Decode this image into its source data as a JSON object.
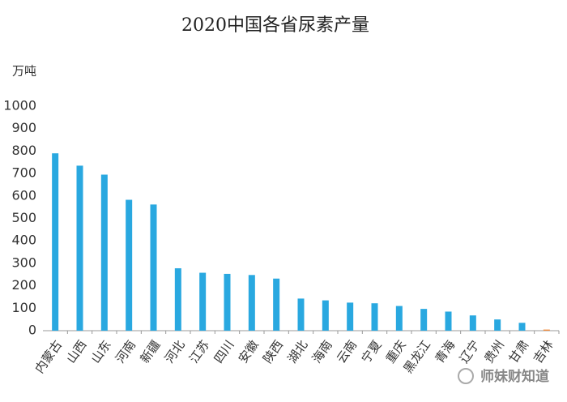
{
  "chart_data": {
    "type": "bar",
    "title": "2020中国各省尿素产量",
    "y_label": "万吨",
    "categories": [
      "内蒙古",
      "山西",
      "山东",
      "河南",
      "新疆",
      "河北",
      "江苏",
      "四川",
      "安徽",
      "陕西",
      "湖北",
      "海南",
      "云南",
      "宁夏",
      "重庆",
      "黑龙江",
      "青海",
      "辽宁",
      "贵州",
      "甘肃",
      "吉林"
    ],
    "values": [
      790,
      735,
      695,
      583,
      562,
      278,
      258,
      253,
      248,
      232,
      143,
      135,
      125,
      122,
      110,
      97,
      85,
      68,
      50,
      35,
      5
    ],
    "colors": [
      "#29a8e0",
      "#29a8e0",
      "#29a8e0",
      "#29a8e0",
      "#29a8e0",
      "#29a8e0",
      "#29a8e0",
      "#29a8e0",
      "#29a8e0",
      "#29a8e0",
      "#29a8e0",
      "#29a8e0",
      "#29a8e0",
      "#29a8e0",
      "#29a8e0",
      "#29a8e0",
      "#29a8e0",
      "#29a8e0",
      "#29a8e0",
      "#29a8e0",
      "#f08a3c"
    ],
    "ylim": [
      0,
      1000
    ],
    "yticks": [
      0,
      100,
      200,
      300,
      400,
      500,
      600,
      700,
      800,
      900,
      1000
    ],
    "grid": false,
    "watermark": "师妹财知道"
  }
}
